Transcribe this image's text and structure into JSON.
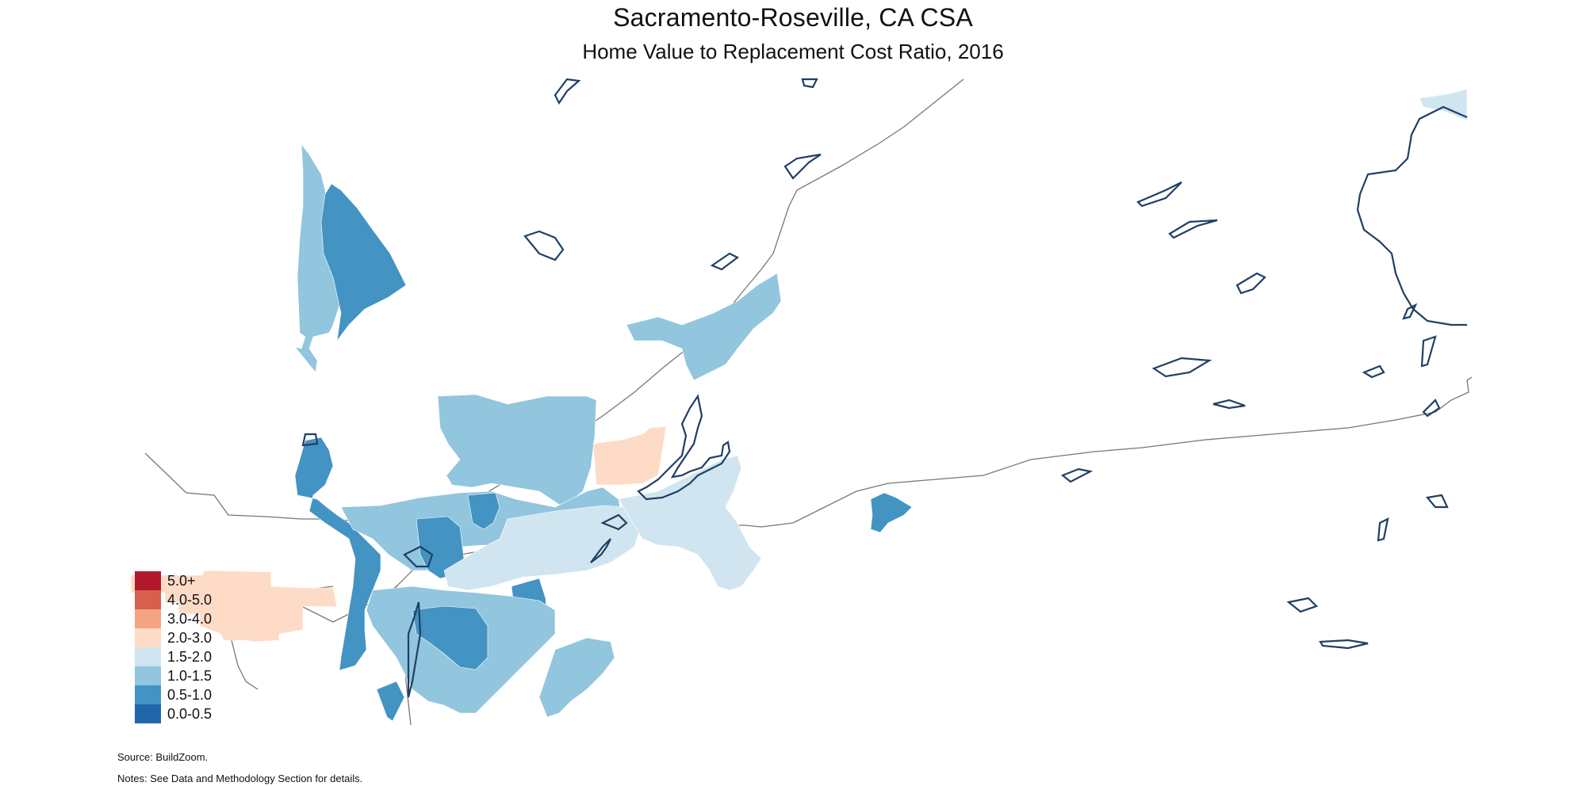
{
  "title": "Sacramento-Roseville, CA CSA",
  "subtitle": "Home Value to Replacement Cost Ratio, 2016",
  "legend": {
    "items": [
      {
        "label": "5.0+",
        "color": "#b2182b"
      },
      {
        "label": "4.0-5.0",
        "color": "#d6604d"
      },
      {
        "label": "3.0-4.0",
        "color": "#f4a582"
      },
      {
        "label": "2.0-3.0",
        "color": "#fddbc7"
      },
      {
        "label": "1.5-2.0",
        "color": "#d1e5f0"
      },
      {
        "label": "1.0-1.5",
        "color": "#92c5de"
      },
      {
        "label": "0.5-1.0",
        "color": "#4393c3"
      },
      {
        "label": "0.0-0.5",
        "color": "#2166ac"
      }
    ]
  },
  "source": "Source: BuildZoom.",
  "notes": "Notes: See Data and Methodology Section for details.",
  "colors": {
    "water_outline": "#1f3f66",
    "road": "#777777"
  }
}
